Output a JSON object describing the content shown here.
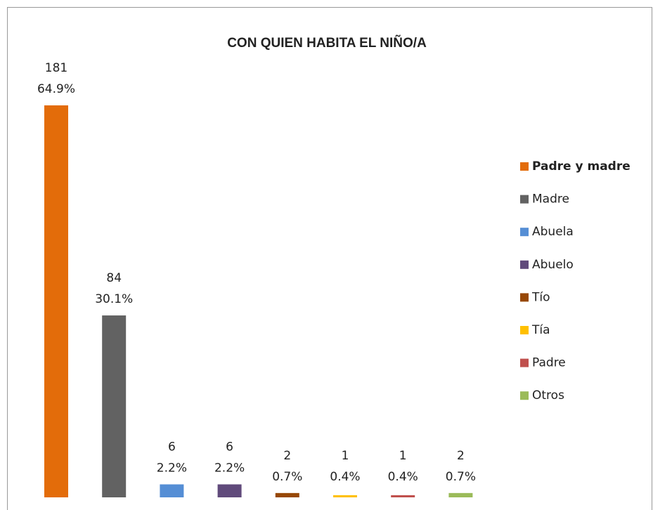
{
  "chart_data": {
    "type": "bar",
    "title": "CON QUIEN HABITA EL NIÑO/A",
    "categories": [
      "Padre y madre",
      "Madre",
      "Abuela",
      "Abuelo",
      "Tío",
      "Tía",
      "Padre",
      "Otros"
    ],
    "values": [
      181,
      84,
      6,
      6,
      2,
      1,
      1,
      2
    ],
    "percentages": [
      64.9,
      30.1,
      2.2,
      2.2,
      0.7,
      0.4,
      0.4,
      0.7
    ],
    "percentage_labels": [
      "64.9%",
      "30.1%",
      "2.2%",
      "2.2%",
      "0.7%",
      "0.4%",
      "0.4%",
      "0.7%"
    ],
    "colors": [
      "#e36c0a",
      "#626262",
      "#558ed5",
      "#604a7b",
      "#974806",
      "#ffc000",
      "#c0504d",
      "#9bbb59"
    ],
    "ylim": [
      0,
      181
    ],
    "legend": "right"
  }
}
